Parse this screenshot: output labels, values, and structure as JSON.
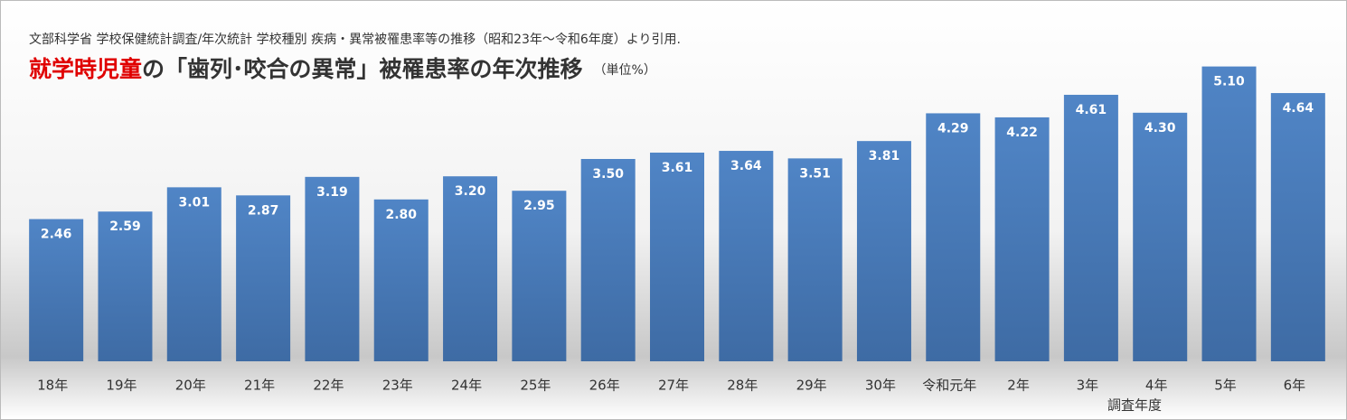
{
  "chart_data": {
    "type": "bar",
    "subtitle": "文部科学省  学校保健統計調査/年次統計  学校種別  疾病・異常被罹患率等の推移（昭和23年～令和6年度）より引用.",
    "title_highlight": "就学時児童",
    "title": "の「歯列･咬合の異常」被罹患率の年次推移",
    "unit": "（単位%）",
    "x_label": "調査年度",
    "categories": [
      "18年",
      "19年",
      "20年",
      "21年",
      "22年",
      "23年",
      "24年",
      "25年",
      "26年",
      "27年",
      "28年",
      "29年",
      "30年",
      "令和元年",
      "2年",
      "3年",
      "4年",
      "5年",
      "6年"
    ],
    "values": [
      2.46,
      2.59,
      3.01,
      2.87,
      3.19,
      2.8,
      3.2,
      2.95,
      3.5,
      3.61,
      3.64,
      3.51,
      3.81,
      4.29,
      4.22,
      4.61,
      4.3,
      5.1,
      4.64
    ],
    "value_labels": [
      "2.46",
      "2.59",
      "3.01",
      "2.87",
      "3.19",
      "2.80",
      "3.20",
      "2.95",
      "3.50",
      "3.61",
      "3.64",
      "3.51",
      "3.81",
      "4.29",
      "4.22",
      "4.61",
      "4.30",
      "5.10",
      "4.64"
    ],
    "color": "#4a78b4",
    "ylim": [
      0,
      6
    ]
  }
}
